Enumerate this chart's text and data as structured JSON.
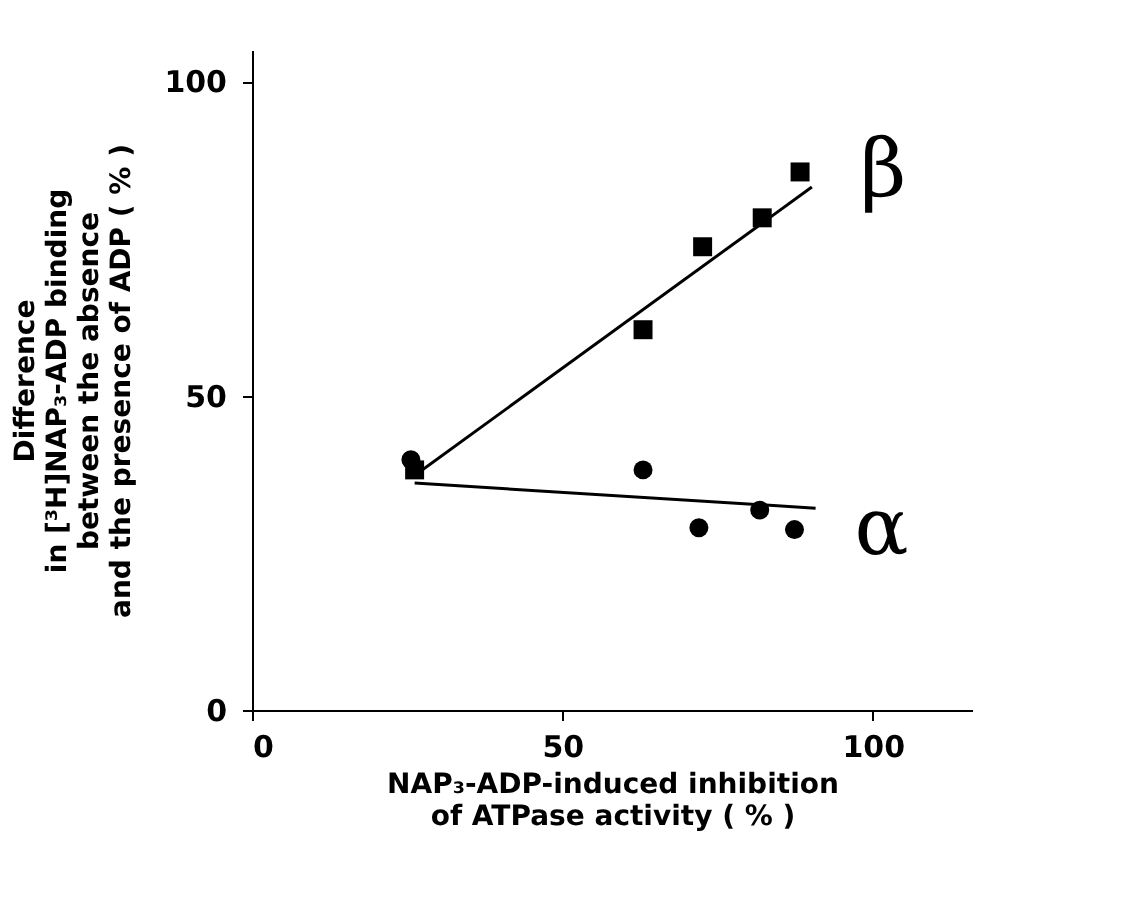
{
  "chart_data": {
    "type": "scatter",
    "xlabel": "NAP₃-ADP-induced inhibition\nof ATPase activity    ( % )",
    "ylabel": "Difference\nin [³H]NAP₃-ADP binding\nbetween the absence\nand the presence of ADP ( % )",
    "xlim": [
      0,
      116
    ],
    "ylim": [
      0,
      105
    ],
    "xticks": [
      0,
      50,
      100
    ],
    "yticks": [
      0,
      50,
      100
    ],
    "grid": false,
    "series": [
      {
        "name": "β",
        "color": "#000000",
        "marker": "square",
        "x": [
          26.2,
          63,
          72.6,
          82.2,
          88.3
        ],
        "values": [
          38.2,
          60.5,
          73.7,
          78.3,
          85.6
        ]
      },
      {
        "name": "α",
        "color": "#000000",
        "marker": "circle",
        "x": [
          25.6,
          63,
          72,
          81.8,
          87.4
        ],
        "values": [
          39.8,
          38.2,
          29,
          31.8,
          28.7
        ]
      },
      {
        "color": "#000000",
        "type": "line",
        "x": [
          26.2,
          90.2
        ],
        "values": [
          37.3,
          83.2
        ]
      },
      {
        "color": "#000000",
        "type": "line",
        "x": [
          26.2,
          90.8
        ],
        "values": [
          36.1,
          32.1
        ]
      }
    ]
  }
}
